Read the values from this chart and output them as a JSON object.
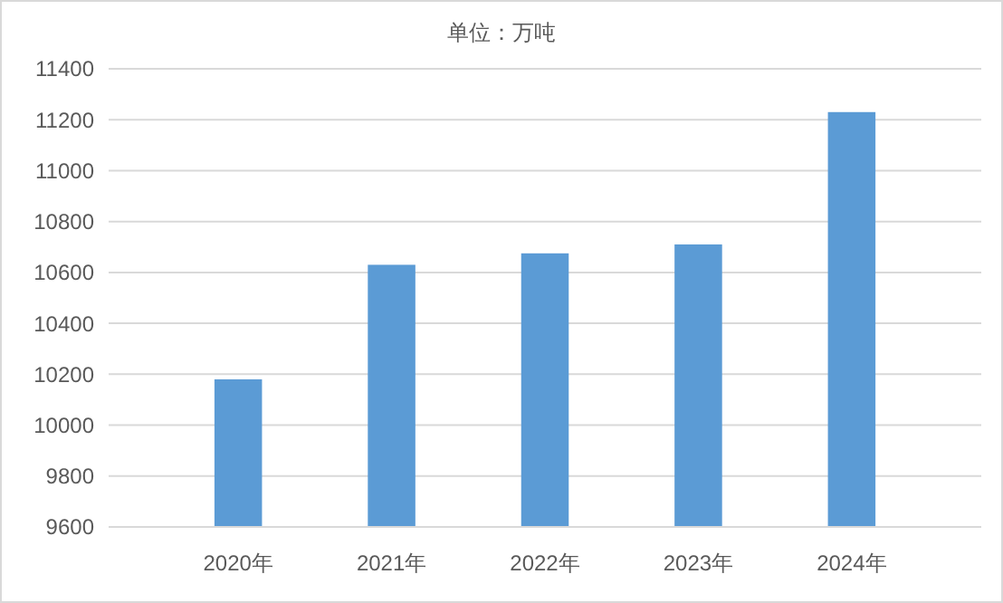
{
  "chart_data": {
    "type": "bar",
    "title": "单位：万吨",
    "categories": [
      "2020年",
      "2021年",
      "2022年",
      "2023年",
      "2024年"
    ],
    "values": [
      10180,
      10630,
      10675,
      10710,
      11230
    ],
    "color": "#5b9bd5",
    "ylim": [
      9600,
      11400
    ],
    "yticks": [
      9600,
      9800,
      10000,
      10200,
      10400,
      10600,
      10800,
      11000,
      11200,
      11400
    ],
    "grid": "y"
  }
}
